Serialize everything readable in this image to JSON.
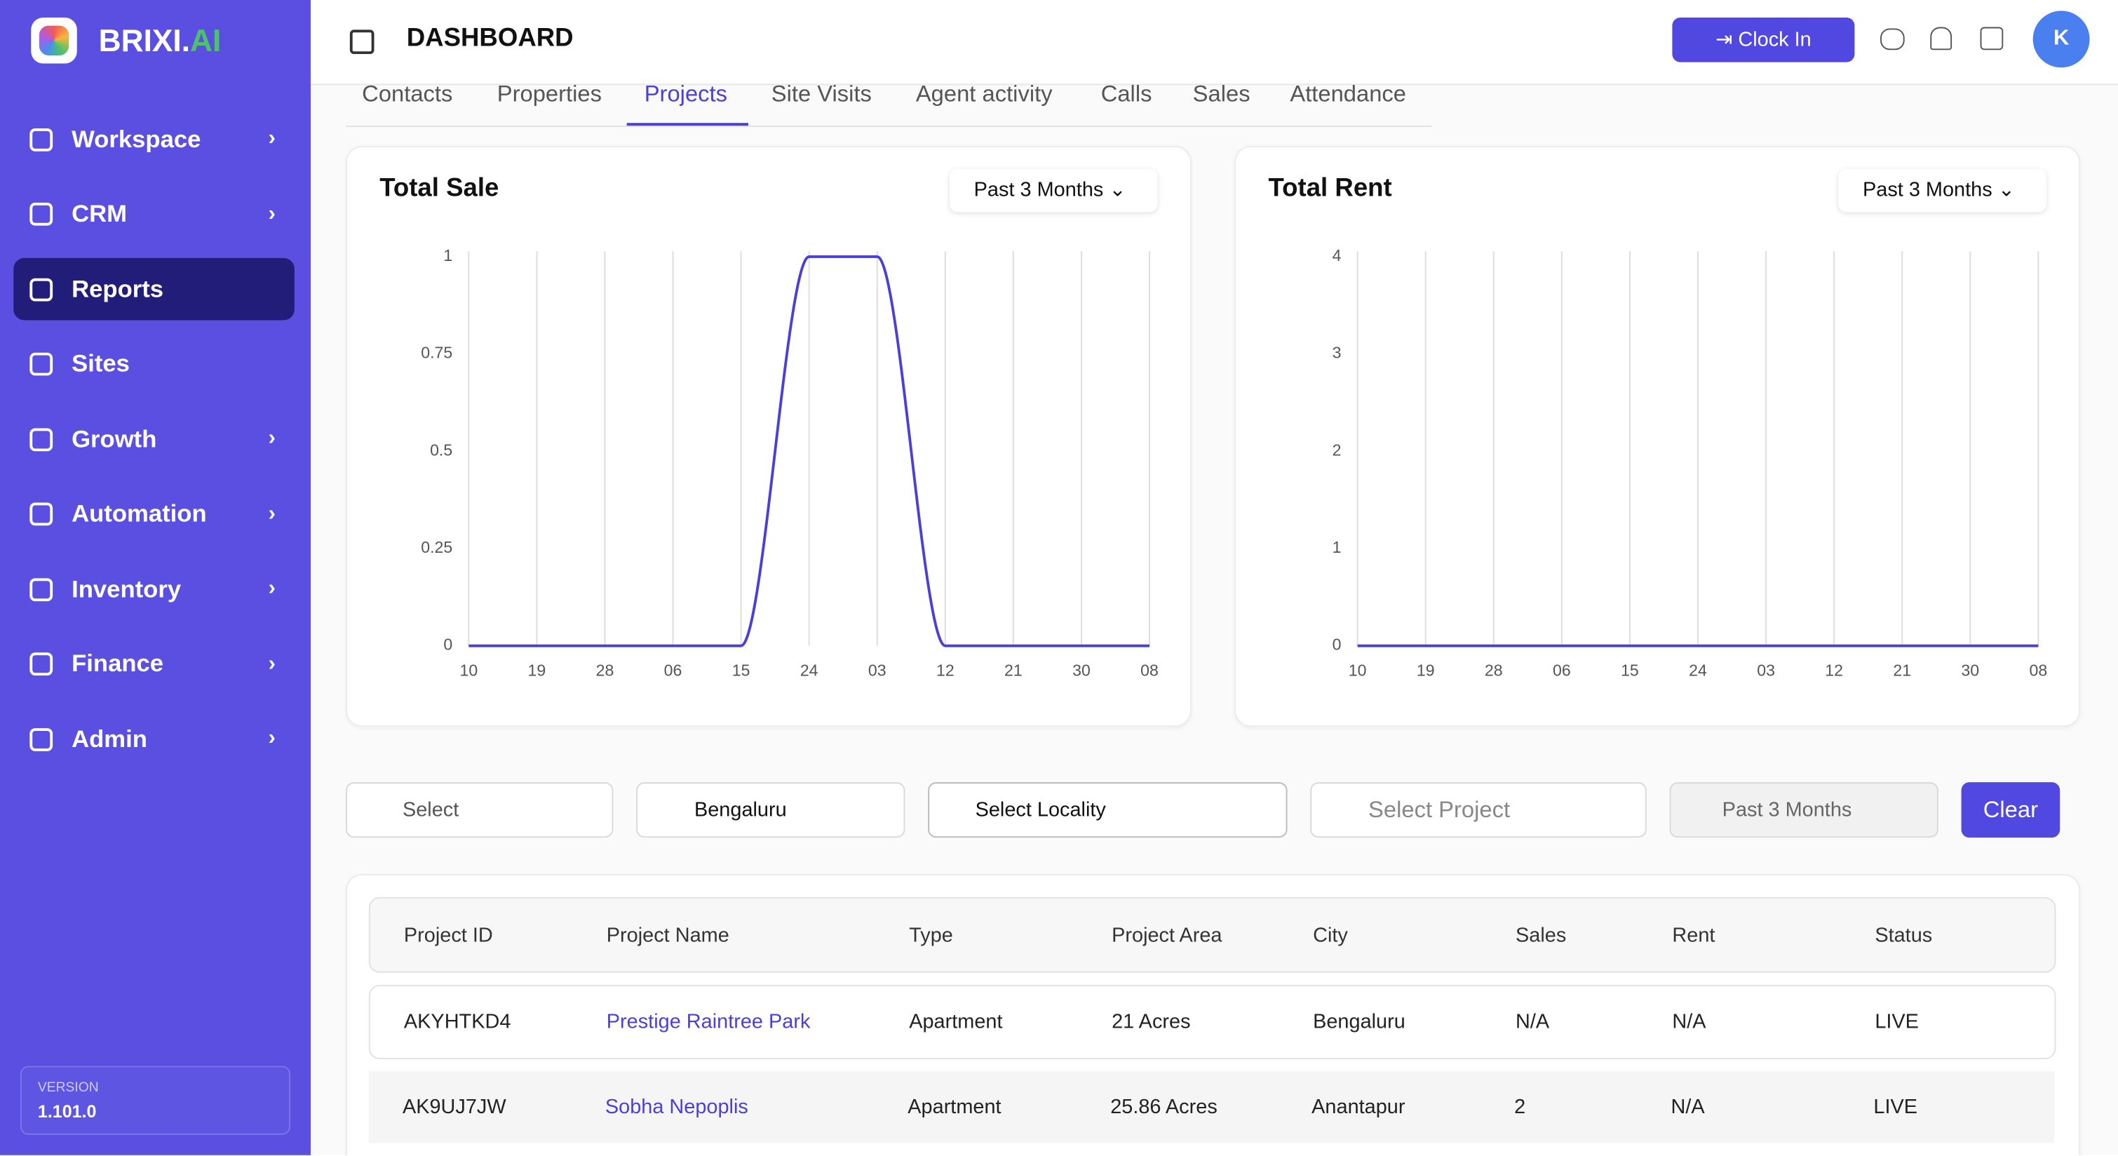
{
  "brand": {
    "name": "BRIXI.",
    "suffix": "AI"
  },
  "sidebar": {
    "items": [
      "Workspace",
      "CRM",
      "Reports",
      "Sites",
      "Growth",
      "Automation",
      "Inventory",
      "Finance",
      "Admin"
    ],
    "active": "Reports",
    "version_label": "VERSION",
    "version": "1.101.0"
  },
  "header": {
    "title": "DASHBOARD",
    "clock_in": "Clock In",
    "avatar": "K"
  },
  "tabs": {
    "items": [
      "Contacts",
      "Properties",
      "Projects",
      "Site Visits",
      "Agent activity",
      "Calls",
      "Sales",
      "Attendance"
    ],
    "active": "Projects"
  },
  "chart_data": [
    {
      "type": "line",
      "title": "Total Sale",
      "period": "Past 3 Months",
      "categories": [
        "10",
        "19",
        "28",
        "06",
        "15",
        "24",
        "03",
        "12",
        "21",
        "30",
        "08"
      ],
      "values": [
        0,
        0,
        0,
        0,
        0,
        1,
        1,
        0,
        0,
        0,
        0
      ],
      "color": "#4a3fd6",
      "ylim": [
        0,
        1
      ],
      "yticks": [
        0,
        0.25,
        0.5,
        0.75,
        1
      ],
      "grid": "x"
    },
    {
      "type": "line",
      "title": "Total Rent",
      "period": "Past 3 Months",
      "categories": [
        "10",
        "19",
        "28",
        "06",
        "15",
        "24",
        "03",
        "12",
        "21",
        "30",
        "08"
      ],
      "values": [
        0,
        0,
        0,
        0,
        0,
        0,
        0,
        0,
        0,
        0,
        0
      ],
      "color": "#4a3fd6",
      "ylim": [
        0,
        4
      ],
      "yticks": [
        0,
        1,
        2,
        3,
        4
      ],
      "grid": "x"
    }
  ],
  "filters": {
    "type": "Select",
    "city": "Bengaluru",
    "locality": "Select Locality",
    "project": "Select Project",
    "period": "Past 3 Months",
    "clear": "Clear"
  },
  "table": {
    "columns": [
      "Project ID",
      "Project Name",
      "Type",
      "Project Area",
      "City",
      "Sales",
      "Rent",
      "Status"
    ],
    "rows": [
      [
        "AKYHTKD4",
        "Prestige Raintree Park",
        "Apartment",
        "21 Acres",
        "Bengaluru",
        "N/A",
        "N/A",
        "LIVE"
      ],
      [
        "AK9UJ7JW",
        "Sobha Nepoplis",
        "Apartment",
        "25.86 Acres",
        "Anantapur",
        "2",
        "N/A",
        "LIVE"
      ]
    ]
  }
}
